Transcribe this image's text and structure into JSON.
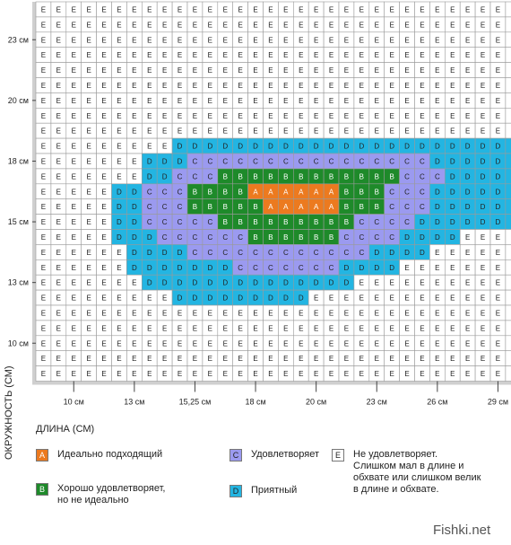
{
  "chart_data": {
    "type": "heatmap",
    "xlabel": "ДЛИНА (СМ)",
    "ylabel": "ОКРУЖНОСТЬ (СМ)",
    "x_ticks": [
      "10 см",
      "13 см",
      "15,25 см",
      "18 см",
      "20 см",
      "23 см",
      "26 см",
      "29 см"
    ],
    "y_ticks": [
      "23 см",
      "20 см",
      "18 см",
      "15 см",
      "13 см",
      "10 см"
    ],
    "grid_rows": [
      "EEEEEEEEEEEEEEEEEEEEEEEEEEEEEEEE",
      "EEEEEEEEEEEEEEEEEEEEEEEEEEEEEEEE",
      "EEEEEEEEEEEEEEEEEEEEEEEEEEEEEEEE",
      "EEEEEEEEEEEEEEEEEEEEEEEEEEEEEEEE",
      "EEEEEEEEEEEEEEEEEEEEEEEEEEEEEEEE",
      "EEEEEEEEEEEEEEEEEEEEEEEEEEEEEEEE",
      "EEEEEEEEEEEEEEEEEEEEEEEEEEEEEEEE",
      "EEEEEEEEEEEEEEEEEEEEEEEEEEEEEEEE",
      "EEEEEEEEEEEEEEEEEEEEEEEEEEEEEEEE",
      "EEEEEEEEEDDDDDDDDDDDDDDDDDDDDDDD",
      "EEEEEEEDDDCCCCCCCCCCCCCCCCDDDDDD",
      "EEEEEEEDDCCCBBBBBBBBBBBBCCCDDDDD",
      "EEEEEDDCCCBBBBAAAAAABBBCCCDDDDDD",
      "EEEEEDDCCCBBBBBAAAAABBBCCCDDDDDD",
      "EEEEEDDCCCCCBBBBBBBBBCCCCDDDDDDD",
      "EEEEEDDDCCCCCCBBBBBBCCCCDDDDEEEE",
      "EEEEEEDDDDCCCCCCCCCCCCDDDDEEEEEE",
      "EEEEEEDDDDDDDCCCCCCCDDDDEEEEEEEE",
      "EEEEEEEDDDDDDDDDDDDDDEEEEEEEEEEE",
      "EEEEEEEEEDDDDDDDDDEEEEEEEEEEEEEE",
      "EEEEEEEEEEEEEEEEEEEEEEEEEEEEEEEE",
      "EEEEEEEEEEEEEEEEEEEEEEEEEEEEEEEE",
      "EEEEEEEEEEEEEEEEEEEEEEEEEEEEEEEE",
      "EEEEEEEEEEEEEEEEEEEEEEEEEEEEEEEE",
      "EEEEEEEEEEEEEEEEEEEEEEEEEEEEEEEE"
    ],
    "colors": {
      "A": "#ec7a1f",
      "B": "#1e8a2a",
      "C": "#9b9af0",
      "D": "#23b5e2",
      "E": "#ffffff"
    },
    "legend": [
      {
        "key": "A",
        "text": "Идеально подходящий"
      },
      {
        "key": "B",
        "text": "Хорошо удовлетворяет,\nно не идеально"
      },
      {
        "key": "C",
        "text": "Удовлетворяет"
      },
      {
        "key": "D",
        "text": "Приятный"
      },
      {
        "key": "E",
        "text": "Не удовлетворяет.\nСлишком мал в длине и\nобхвате или слишком велик\nв длине и обхвате."
      }
    ]
  },
  "watermark": "Fishki.net"
}
